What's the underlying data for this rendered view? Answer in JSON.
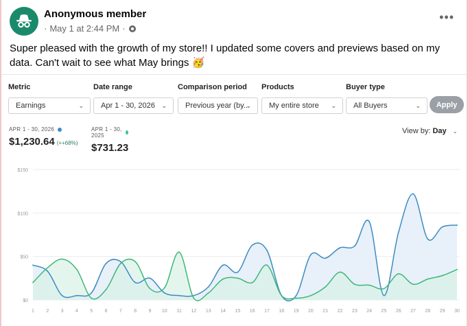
{
  "post": {
    "author": "Anonymous member",
    "date": "May 1 at 2:44 PM",
    "text": "Super pleased with the growth of my store!! I updated some covers and previews based on my data. Can't wait to see what May brings 🥳"
  },
  "icons": {
    "avatar": "incognito-icon",
    "audience": "globe-icon",
    "more": "more-options-icon"
  },
  "filters": [
    {
      "label": "Metric",
      "value": "Earnings"
    },
    {
      "label": "Date range",
      "value": "Apr 1 - 30, 2026"
    },
    {
      "label": "Comparison period",
      "value": "Previous year (by..."
    },
    {
      "label": "Products",
      "value": "My entire store"
    },
    {
      "label": "Buyer type",
      "value": "All Buyers"
    }
  ],
  "apply_label": "Apply",
  "summary": {
    "current": {
      "date": "APR 1 - 30, 2026",
      "value": "$1,230.64",
      "change": "(++68%)",
      "color": "#3d8bc2"
    },
    "previous": {
      "date": "APR 1 - 30, 2025",
      "value": "$731.23",
      "color": "#3cc48a"
    }
  },
  "view_by": {
    "label": "View by:",
    "value": "Day"
  },
  "colors": {
    "current_line": "#3d8bc2",
    "current_fill": "#e6eef8",
    "previous_line": "#3cb878",
    "previous_fill": "#d9f1e7",
    "avatar_bg": "#1a8a6b"
  },
  "chart_data": {
    "type": "area",
    "x": [
      1,
      2,
      3,
      4,
      5,
      6,
      7,
      8,
      9,
      10,
      11,
      12,
      13,
      14,
      15,
      16,
      17,
      18,
      19,
      20,
      21,
      22,
      23,
      24,
      25,
      26,
      27,
      28,
      29,
      30
    ],
    "yticks": [
      "$0",
      "$50",
      "$100",
      "$150"
    ],
    "ylim": [
      0,
      150
    ],
    "grid": true,
    "series": [
      {
        "name": "APR 1 - 30, 2026",
        "values": [
          40,
          33,
          5,
          5,
          8,
          42,
          44,
          20,
          25,
          8,
          5,
          5,
          15,
          40,
          32,
          63,
          57,
          5,
          5,
          52,
          48,
          60,
          62,
          90,
          5,
          78,
          122,
          70,
          84,
          86
        ]
      },
      {
        "name": "APR 1 - 30, 2025",
        "values": [
          20,
          37,
          47,
          35,
          2,
          12,
          42,
          44,
          13,
          14,
          55,
          2,
          8,
          24,
          25,
          20,
          40,
          5,
          2,
          5,
          15,
          32,
          18,
          17,
          13,
          30,
          18,
          24,
          28,
          35
        ]
      }
    ]
  }
}
